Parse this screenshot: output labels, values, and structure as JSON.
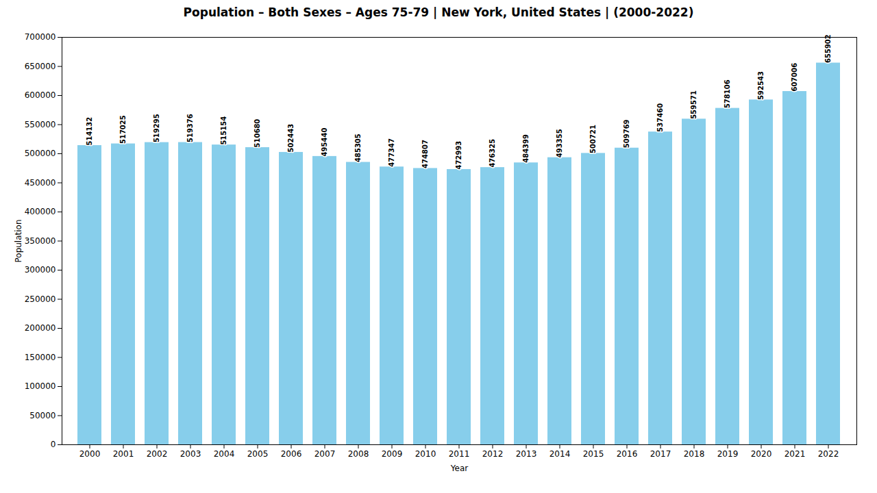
{
  "chart_data": {
    "type": "bar",
    "title": "Population – Both Sexes – Ages 75-79 | New York, United States |   (2000-2022)",
    "xlabel": "Year",
    "ylabel": "Population",
    "categories": [
      "2000",
      "2001",
      "2002",
      "2003",
      "2004",
      "2005",
      "2006",
      "2007",
      "2008",
      "2009",
      "2010",
      "2011",
      "2012",
      "2013",
      "2014",
      "2015",
      "2016",
      "2017",
      "2018",
      "2019",
      "2020",
      "2021",
      "2022"
    ],
    "values": [
      514132,
      517025,
      519295,
      519376,
      515154,
      510680,
      502443,
      495440,
      485305,
      477347,
      474807,
      472993,
      476325,
      484399,
      493355,
      500721,
      509769,
      537460,
      559571,
      578106,
      592543,
      607006,
      655902
    ],
    "color": "#87CEEB",
    "ylim": [
      0,
      700000
    ],
    "yticks": [
      0,
      50000,
      100000,
      150000,
      200000,
      250000,
      300000,
      350000,
      400000,
      450000,
      500000,
      550000,
      600000,
      650000,
      700000
    ],
    "grid": false,
    "data_labels": true
  }
}
